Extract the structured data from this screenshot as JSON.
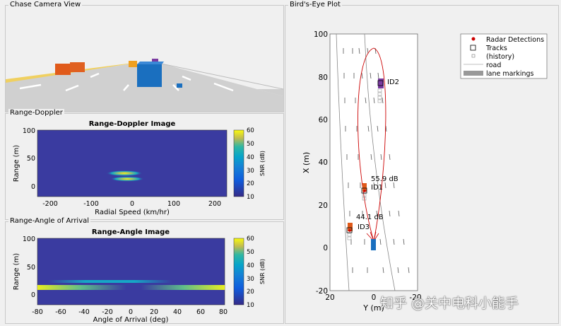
{
  "panels": {
    "chase": "Chase Camera View",
    "doppler": "Range-Doppler",
    "aoa": "Range-Angle of Arrival",
    "bev": "Bird's-Eye Plot"
  },
  "colors": {
    "accent_red": "#cc0000",
    "ego_blue": "#1a6fbf",
    "lead_orange": "#e05a1a",
    "parula_low": "#352a87",
    "parula_high": "#f9fb0e"
  },
  "range_doppler": {
    "title": "Range-Doppler Image",
    "xlabel": "Radial Speed (km/hr)",
    "ylabel": "Range (m)",
    "xticks": [
      "-200",
      "-100",
      "0",
      "100",
      "200"
    ],
    "yticks": [
      "100",
      "50",
      "0"
    ],
    "colorbar_label": "SNR (dB)",
    "colorbar_ticks": [
      "60",
      "50",
      "40",
      "30",
      "20",
      "10"
    ]
  },
  "range_angle": {
    "title": "Range-Angle Image",
    "xlabel": "Angle of Arrival (deg)",
    "ylabel": "Range (m)",
    "xticks": [
      "-80",
      "-60",
      "-40",
      "-20",
      "0",
      "20",
      "40",
      "60",
      "80"
    ],
    "yticks": [
      "100",
      "50",
      "0"
    ],
    "colorbar_label": "SNR (dB)",
    "colorbar_ticks": [
      "60",
      "50",
      "40",
      "30",
      "20",
      "10"
    ]
  },
  "birds_eye": {
    "xlabel_vertical": "X (m)",
    "ylabel_horizontal": "Y (m)",
    "xticks": [
      "100",
      "80",
      "60",
      "40",
      "20",
      "0",
      "-20"
    ],
    "yticks": [
      "20",
      "0",
      "-20"
    ],
    "legend": [
      "Radar Detections",
      "Tracks",
      "(history)",
      "road",
      "lane markings"
    ],
    "tracks": [
      {
        "id": "ID2",
        "snr": ""
      },
      {
        "id": "ID1",
        "snr": "55.9 dB"
      },
      {
        "id": "ID3",
        "snr": "44.1 dB"
      }
    ]
  },
  "watermark": "知乎 @关中电科小能手"
}
